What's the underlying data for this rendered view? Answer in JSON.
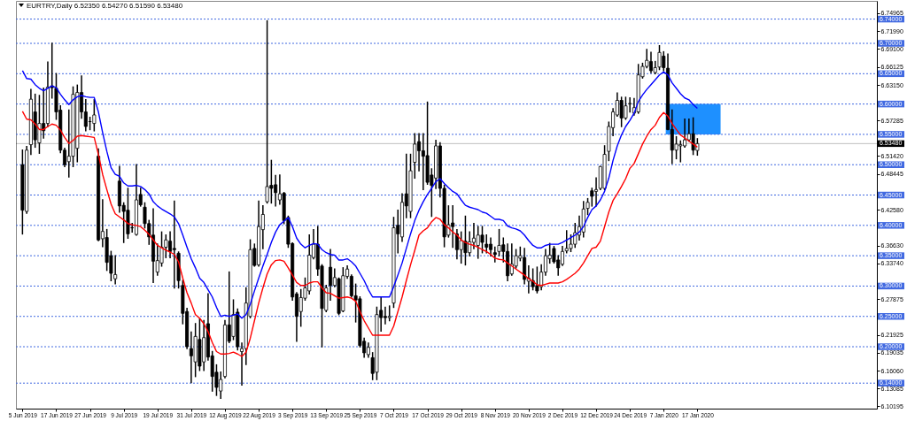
{
  "chart_data": {
    "type": "candlestick",
    "title": "EURTRY,Daily  6.52350 6.54270 6.51590 6.53480",
    "categories": [
      "5 Jun 2019",
      null,
      null,
      null,
      null,
      null,
      null,
      null,
      "17 Jun 2019",
      null,
      null,
      null,
      null,
      null,
      null,
      null,
      "27 Jun 2019",
      null,
      null,
      null,
      null,
      null,
      null,
      null,
      "9 Jul 2019",
      null,
      null,
      null,
      null,
      null,
      null,
      null,
      "19 Jul 2019",
      null,
      null,
      null,
      null,
      null,
      null,
      null,
      "31 Jul 2019",
      null,
      null,
      null,
      null,
      null,
      null,
      null,
      "12 Aug 2019",
      null,
      null,
      null,
      null,
      null,
      null,
      null,
      "22 Aug 2019",
      null,
      null,
      null,
      null,
      null,
      null,
      null,
      "3 Sep 2019",
      null,
      null,
      null,
      null,
      null,
      null,
      null,
      "13 Sep 2019",
      null,
      null,
      null,
      null,
      null,
      null,
      null,
      "25 Sep 2019",
      null,
      null,
      null,
      null,
      null,
      null,
      null,
      "7 Oct 2019",
      null,
      null,
      null,
      null,
      null,
      null,
      null,
      "17 Oct 2019",
      null,
      null,
      null,
      null,
      null,
      null,
      null,
      "29 Oct 2019",
      null,
      null,
      null,
      null,
      null,
      null,
      null,
      "8 Nov 2019",
      null,
      null,
      null,
      null,
      null,
      null,
      null,
      "20 Nov 2019",
      null,
      null,
      null,
      null,
      null,
      null,
      null,
      "2 Dec 2019",
      null,
      null,
      null,
      null,
      null,
      null,
      null,
      "12 Dec 2019",
      null,
      null,
      null,
      null,
      null,
      null,
      null,
      "24 Dec 2019",
      null,
      null,
      null,
      null,
      null,
      null,
      null,
      "7 Jan 2020",
      null,
      null,
      null,
      null,
      null,
      null,
      null,
      "17 Jan 2020"
    ],
    "ohlc": [
      [
        6.5,
        6.524,
        6.386,
        6.425
      ],
      [
        6.423,
        6.53,
        6.42,
        6.524
      ],
      [
        6.533,
        6.624,
        6.517,
        6.608
      ],
      [
        6.587,
        6.616,
        6.529,
        6.541
      ],
      [
        6.536,
        6.614,
        6.519,
        6.568
      ],
      [
        6.568,
        6.626,
        6.544,
        6.556
      ],
      [
        6.568,
        6.669,
        6.563,
        6.628
      ],
      [
        6.63,
        6.7,
        6.61,
        6.627
      ],
      [
        6.626,
        6.65,
        6.575,
        6.587
      ],
      [
        6.59,
        6.597,
        6.52,
        6.524
      ],
      [
        6.524,
        6.527,
        6.497,
        6.5
      ],
      [
        6.505,
        6.59,
        6.48,
        6.514
      ],
      [
        6.514,
        6.628,
        6.497,
        6.616
      ],
      [
        6.527,
        6.631,
        6.505,
        6.619
      ],
      [
        6.619,
        6.646,
        6.577,
        6.587
      ],
      [
        6.587,
        6.607,
        6.556,
        6.563
      ],
      [
        6.571,
        6.578,
        6.558,
        6.571
      ],
      [
        6.568,
        6.607,
        6.556,
        6.582
      ],
      [
        6.514,
        6.526,
        6.375,
        6.376
      ],
      [
        6.378,
        6.442,
        6.365,
        6.39
      ],
      [
        6.38,
        6.393,
        6.326,
        6.339
      ],
      [
        6.35,
        6.357,
        6.309,
        6.321
      ],
      [
        6.312,
        6.35,
        6.304,
        6.319
      ],
      [
        6.473,
        6.497,
        6.422,
        6.432
      ],
      [
        6.433,
        6.437,
        6.372,
        6.423
      ],
      [
        6.425,
        6.461,
        6.379,
        6.386
      ],
      [
        6.396,
        6.403,
        6.389,
        6.396
      ],
      [
        6.385,
        6.5,
        6.384,
        6.442
      ],
      [
        6.451,
        6.461,
        6.432,
        6.434
      ],
      [
        6.43,
        6.437,
        6.396,
        6.403
      ],
      [
        6.403,
        6.408,
        6.369,
        6.381
      ],
      [
        6.384,
        6.427,
        6.306,
        6.341
      ],
      [
        6.323,
        6.369,
        6.318,
        6.342
      ],
      [
        6.338,
        6.389,
        6.333,
        6.364
      ],
      [
        6.364,
        6.384,
        6.347,
        6.376
      ],
      [
        6.374,
        6.389,
        6.347,
        6.357
      ],
      [
        6.362,
        6.44,
        6.297,
        6.36
      ],
      [
        6.354,
        6.356,
        6.297,
        6.309
      ],
      [
        6.301,
        6.309,
        6.238,
        6.255
      ],
      [
        6.258,
        6.263,
        6.197,
        6.2
      ],
      [
        6.197,
        6.224,
        6.141,
        6.185
      ],
      [
        6.175,
        6.238,
        6.151,
        6.217
      ],
      [
        6.212,
        6.246,
        6.161,
        6.168
      ],
      [
        6.175,
        6.243,
        6.161,
        6.215
      ],
      [
        6.238,
        6.287,
        6.178,
        6.183
      ],
      [
        6.185,
        6.192,
        6.127,
        6.151
      ],
      [
        6.158,
        6.17,
        6.12,
        6.133
      ],
      [
        6.127,
        6.158,
        6.115,
        6.146
      ],
      [
        6.151,
        6.243,
        6.149,
        6.236
      ],
      [
        6.236,
        6.323,
        6.207,
        6.209
      ],
      [
        6.217,
        6.277,
        6.212,
        6.253
      ],
      [
        6.257,
        6.262,
        6.195,
        6.2
      ],
      [
        6.192,
        6.206,
        6.137,
        6.197
      ],
      [
        6.197,
        6.297,
        6.171,
        6.272
      ],
      [
        6.25,
        6.376,
        6.248,
        6.36
      ],
      [
        6.362,
        6.369,
        6.333,
        6.334
      ],
      [
        6.335,
        6.44,
        6.333,
        6.398
      ],
      [
        6.393,
        6.432,
        6.362,
        6.418
      ],
      [
        6.439,
        6.737,
        6.437,
        6.464
      ],
      [
        6.466,
        6.507,
        6.437,
        6.461
      ],
      [
        6.467,
        6.482,
        6.432,
        6.454
      ],
      [
        6.442,
        6.483,
        6.435,
        6.452
      ],
      [
        6.453,
        6.454,
        6.403,
        6.408
      ],
      [
        6.413,
        6.415,
        6.364,
        6.369
      ],
      [
        6.37,
        6.371,
        6.277,
        6.282
      ],
      [
        6.287,
        6.289,
        6.209,
        6.25
      ],
      [
        6.258,
        6.294,
        6.234,
        6.281
      ],
      [
        6.28,
        6.313,
        6.277,
        6.297
      ],
      [
        6.292,
        6.384,
        6.287,
        6.351
      ],
      [
        6.347,
        6.393,
        6.345,
        6.369
      ],
      [
        6.369,
        6.398,
        6.318,
        6.328
      ],
      [
        6.333,
        6.335,
        6.2,
        6.263
      ],
      [
        6.26,
        6.301,
        6.258,
        6.297
      ],
      [
        6.331,
        6.36,
        6.277,
        6.301
      ],
      [
        6.301,
        6.328,
        6.299,
        6.314
      ],
      [
        6.312,
        6.313,
        6.253,
        6.255
      ],
      [
        6.259,
        6.33,
        6.258,
        6.317
      ],
      [
        6.316,
        6.333,
        6.313,
        6.328
      ],
      [
        6.316,
        6.318,
        6.282,
        6.284
      ],
      [
        6.284,
        6.303,
        6.241,
        6.277
      ],
      [
        6.279,
        6.282,
        6.2,
        6.202
      ],
      [
        6.209,
        6.214,
        6.183,
        6.19
      ],
      [
        6.187,
        6.206,
        6.183,
        6.199
      ],
      [
        6.182,
        6.19,
        6.146,
        6.156
      ],
      [
        6.158,
        6.265,
        6.146,
        6.253
      ],
      [
        6.26,
        6.282,
        6.226,
        6.248
      ],
      [
        6.25,
        6.265,
        6.238,
        6.248
      ],
      [
        6.248,
        6.267,
        6.243,
        6.25
      ],
      [
        6.272,
        6.413,
        6.265,
        6.396
      ],
      [
        6.4,
        6.425,
        6.355,
        6.386
      ],
      [
        6.381,
        6.452,
        6.374,
        6.438
      ],
      [
        6.452,
        6.517,
        6.413,
        6.432
      ],
      [
        6.423,
        6.517,
        6.413,
        6.49
      ],
      [
        6.504,
        6.551,
        6.478,
        6.534
      ],
      [
        6.538,
        6.551,
        6.49,
        6.523
      ],
      [
        6.523,
        6.551,
        6.459,
        6.514
      ],
      [
        6.515,
        6.603,
        6.468,
        6.471
      ],
      [
        6.483,
        6.493,
        6.415,
        6.466
      ],
      [
        6.478,
        6.54,
        6.461,
        6.531
      ],
      [
        6.531,
        6.536,
        6.447,
        6.461
      ],
      [
        6.461,
        6.466,
        6.365,
        6.381
      ],
      [
        6.384,
        6.432,
        6.381,
        6.401
      ],
      [
        6.404,
        6.432,
        6.364,
        6.398
      ],
      [
        6.386,
        6.393,
        6.345,
        6.36
      ],
      [
        6.36,
        6.389,
        6.338,
        6.375
      ],
      [
        6.374,
        6.415,
        6.335,
        6.355
      ],
      [
        6.355,
        6.389,
        6.35,
        6.373
      ],
      [
        6.372,
        6.403,
        6.362,
        6.379
      ],
      [
        6.367,
        6.398,
        6.346,
        6.384
      ],
      [
        6.384,
        6.398,
        6.355,
        6.372
      ],
      [
        6.369,
        6.384,
        6.355,
        6.364
      ],
      [
        6.369,
        6.379,
        6.35,
        6.36
      ],
      [
        6.355,
        6.364,
        6.34,
        6.352
      ],
      [
        6.357,
        6.393,
        6.35,
        6.367
      ],
      [
        6.368,
        6.379,
        6.34,
        6.357
      ],
      [
        6.357,
        6.369,
        6.309,
        6.317
      ],
      [
        6.32,
        6.369,
        6.318,
        6.336
      ],
      [
        6.333,
        6.36,
        6.33,
        6.35
      ],
      [
        6.346,
        6.364,
        6.342,
        6.35
      ],
      [
        6.347,
        6.362,
        6.304,
        6.311
      ],
      [
        6.308,
        6.333,
        6.289,
        6.313
      ],
      [
        6.309,
        6.328,
        6.294,
        6.299
      ],
      [
        6.301,
        6.331,
        6.289,
        6.292
      ],
      [
        6.299,
        6.335,
        6.294,
        6.323
      ],
      [
        6.323,
        6.36,
        6.318,
        6.35
      ],
      [
        6.345,
        6.37,
        6.338,
        6.351
      ],
      [
        6.362,
        6.365,
        6.338,
        6.34
      ],
      [
        6.343,
        6.35,
        6.318,
        6.33
      ],
      [
        6.336,
        6.365,
        6.334,
        6.357
      ],
      [
        6.358,
        6.391,
        6.355,
        6.362
      ],
      [
        6.362,
        6.384,
        6.357,
        6.369
      ],
      [
        6.369,
        6.403,
        6.364,
        6.388
      ],
      [
        6.384,
        6.415,
        6.376,
        6.398
      ],
      [
        6.389,
        6.439,
        6.381,
        6.427
      ],
      [
        6.428,
        6.444,
        6.418,
        6.438
      ],
      [
        6.457,
        6.461,
        6.432,
        6.448
      ],
      [
        6.456,
        6.478,
        6.432,
        6.459
      ],
      [
        6.461,
        6.497,
        6.459,
        6.497
      ],
      [
        6.461,
        6.531,
        6.459,
        6.517
      ],
      [
        6.522,
        6.57,
        6.507,
        6.563
      ],
      [
        6.561,
        6.592,
        6.548,
        6.587
      ],
      [
        6.582,
        6.618,
        6.58,
        6.606
      ],
      [
        6.606,
        6.611,
        6.563,
        6.577
      ],
      [
        6.577,
        6.611,
        6.575,
        6.597
      ],
      [
        6.6,
        6.61,
        6.587,
        6.601
      ],
      [
        6.585,
        6.609,
        6.582,
        6.594
      ],
      [
        6.587,
        6.665,
        6.585,
        6.648
      ],
      [
        6.645,
        6.667,
        6.643,
        6.662
      ],
      [
        6.662,
        6.69,
        6.66,
        6.672
      ],
      [
        6.67,
        6.685,
        6.652,
        6.655
      ],
      [
        6.652,
        6.67,
        6.65,
        6.66
      ],
      [
        6.661,
        6.696,
        6.657,
        6.685
      ],
      [
        6.679,
        6.686,
        6.655,
        6.66
      ],
      [
        6.659,
        6.682,
        6.558,
        6.558
      ],
      [
        6.558,
        6.59,
        6.502,
        6.524
      ],
      [
        6.524,
        6.546,
        6.51,
        6.534
      ],
      [
        6.531,
        6.539,
        6.505,
        6.533
      ],
      [
        6.531,
        6.575,
        6.529,
        6.541
      ],
      [
        6.541,
        6.575,
        6.539,
        6.551
      ],
      [
        6.551,
        6.577,
        6.517,
        6.524
      ],
      [
        6.5235,
        6.5427,
        6.5159,
        6.5348
      ]
    ],
    "series": [
      {
        "type": "line",
        "color": "#ff0000",
        "values": [
          6.588,
          6.575,
          6.574,
          6.567,
          6.558,
          6.558,
          6.563,
          6.567,
          6.565,
          6.557,
          6.545,
          6.535,
          6.54,
          6.547,
          6.548,
          6.547,
          6.546,
          6.545,
          6.517,
          6.484,
          6.459,
          6.435,
          6.419,
          6.414,
          6.409,
          6.403,
          6.401,
          6.4,
          6.398,
          6.392,
          6.385,
          6.376,
          6.367,
          6.363,
          6.359,
          6.356,
          6.352,
          6.34,
          6.313,
          6.289,
          6.272,
          6.253,
          6.247,
          6.238,
          6.225,
          6.207,
          6.192,
          6.188,
          6.188,
          6.189,
          6.191,
          6.188,
          6.184,
          6.191,
          6.214,
          6.243,
          6.272,
          6.297,
          6.32,
          6.335,
          6.342,
          6.343,
          6.341,
          6.33,
          6.318,
          6.306,
          6.301,
          6.301,
          6.305,
          6.307,
          6.307,
          6.297,
          6.289,
          6.288,
          6.284,
          6.28,
          6.281,
          6.282,
          6.28,
          6.275,
          6.258,
          6.243,
          6.231,
          6.219,
          6.219,
          6.219,
          6.219,
          6.219,
          6.234,
          6.258,
          6.282,
          6.309,
          6.335,
          6.359,
          6.384,
          6.391,
          6.396,
          6.406,
          6.413,
          6.41,
          6.401,
          6.396,
          6.389,
          6.384,
          6.376,
          6.372,
          6.369,
          6.367,
          6.364,
          6.36,
          6.357,
          6.352,
          6.346,
          6.344,
          6.343,
          6.338,
          6.333,
          6.328,
          6.323,
          6.318,
          6.312,
          6.308,
          6.302,
          6.301,
          6.303,
          6.305,
          6.305,
          6.305,
          6.307,
          6.311,
          6.316,
          6.321,
          6.328,
          6.338,
          6.35,
          6.362,
          6.364,
          6.374,
          6.398,
          6.422,
          6.441,
          6.452,
          6.464,
          6.477,
          6.494,
          6.502,
          6.518,
          6.534,
          6.547,
          6.558,
          6.565,
          6.578,
          6.586,
          6.58,
          6.568,
          6.558,
          6.549,
          6.544,
          6.539,
          6.534,
          6.529
        ]
      },
      {
        "type": "line",
        "color": "#0000ff",
        "values": [
          6.655,
          6.642,
          6.641,
          6.632,
          6.626,
          6.622,
          6.626,
          6.63,
          6.627,
          6.616,
          6.607,
          6.599,
          6.607,
          6.612,
          6.614,
          6.612,
          6.611,
          6.611,
          6.587,
          6.553,
          6.522,
          6.495,
          6.484,
          6.481,
          6.47,
          6.465,
          6.465,
          6.466,
          6.464,
          6.459,
          6.452,
          6.439,
          6.432,
          6.427,
          6.423,
          6.419,
          6.414,
          6.403,
          6.384,
          6.364,
          6.345,
          6.33,
          6.313,
          6.306,
          6.294,
          6.282,
          6.265,
          6.25,
          6.252,
          6.25,
          6.252,
          6.254,
          6.247,
          6.253,
          6.27,
          6.292,
          6.313,
          6.333,
          6.352,
          6.372,
          6.389,
          6.401,
          6.407,
          6.413,
          6.398,
          6.379,
          6.369,
          6.363,
          6.367,
          6.37,
          6.369,
          6.36,
          6.355,
          6.352,
          6.351,
          6.343,
          6.343,
          6.345,
          6.34,
          6.333,
          6.321,
          6.309,
          6.294,
          6.282,
          6.282,
          6.282,
          6.282,
          6.282,
          6.299,
          6.318,
          6.338,
          6.362,
          6.386,
          6.408,
          6.425,
          6.439,
          6.451,
          6.461,
          6.472,
          6.477,
          6.469,
          6.462,
          6.456,
          6.452,
          6.442,
          6.433,
          6.43,
          6.428,
          6.426,
          6.422,
          6.42,
          6.415,
          6.41,
          6.41,
          6.408,
          6.399,
          6.396,
          6.394,
          6.391,
          6.384,
          6.375,
          6.367,
          6.363,
          6.363,
          6.367,
          6.369,
          6.369,
          6.369,
          6.372,
          6.376,
          6.38,
          6.384,
          6.389,
          6.398,
          6.413,
          6.426,
          6.432,
          6.442,
          6.456,
          6.478,
          6.507,
          6.531,
          6.549,
          6.563,
          6.573,
          6.585,
          6.604,
          6.615,
          6.624,
          6.632,
          6.64,
          6.648,
          6.653,
          6.648,
          6.635,
          6.626,
          6.617,
          6.61,
          6.607,
          6.599,
          6.593
        ]
      }
    ],
    "ylim": [
      6.098,
      6.77
    ],
    "yticks": [
      {
        "value": 6.74965,
        "label": "6.74965"
      },
      {
        "value": 6.7199,
        "label": "6.71990"
      },
      {
        "value": 6.691,
        "label": "6.69100"
      },
      {
        "value": 6.66125,
        "label": "6.66125"
      },
      {
        "value": 6.6315,
        "label": "6.63150"
      },
      {
        "value": 6.57285,
        "label": "6.57285"
      },
      {
        "value": 6.5142,
        "label": "6.51420"
      },
      {
        "value": 6.48445,
        "label": "6.48445"
      },
      {
        "value": 6.4258,
        "label": "6.42580"
      },
      {
        "value": 6.3663,
        "label": "6.36630"
      },
      {
        "value": 6.3374,
        "label": "6.33740"
      },
      {
        "value": 6.27875,
        "label": "6.27875"
      },
      {
        "value": 6.21925,
        "label": "6.21925"
      },
      {
        "value": 6.19035,
        "label": "6.19035"
      },
      {
        "value": 6.1606,
        "label": "6.16060"
      },
      {
        "value": 6.13085,
        "label": "6.13085"
      },
      {
        "value": 6.10195,
        "label": "6.10195"
      }
    ],
    "ref_lines": [
      {
        "axis": "y",
        "value": 6.74,
        "label": "6.74000",
        "color": "#4169e1",
        "line_style": "dotted"
      },
      {
        "axis": "y",
        "value": 6.7,
        "label": "6.70000",
        "color": "#4169e1",
        "line_style": "dotted"
      },
      {
        "axis": "y",
        "value": 6.65,
        "label": "6.65000",
        "color": "#4169e1",
        "line_style": "dotted"
      },
      {
        "axis": "y",
        "value": 6.6,
        "label": "6.60000",
        "color": "#4169e1",
        "line_style": "dotted"
      },
      {
        "axis": "y",
        "value": 6.55,
        "label": "6.55000",
        "color": "#4169e1",
        "line_style": "dotted"
      },
      {
        "axis": "y",
        "value": 6.5,
        "label": "6.50000",
        "color": "#4169e1",
        "line_style": "dotted"
      },
      {
        "axis": "y",
        "value": 6.45,
        "label": "6.45000",
        "color": "#4169e1",
        "line_style": "dotted"
      },
      {
        "axis": "y",
        "value": 6.4,
        "label": "6.40000",
        "color": "#4169e1",
        "line_style": "dotted"
      },
      {
        "axis": "y",
        "value": 6.35,
        "label": "6.35000",
        "color": "#4169e1",
        "line_style": "dotted"
      },
      {
        "axis": "y",
        "value": 6.3,
        "label": "6.30000",
        "color": "#4169e1",
        "line_style": "dotted"
      },
      {
        "axis": "y",
        "value": 6.25,
        "label": "6.25000",
        "color": "#4169e1",
        "line_style": "dotted"
      },
      {
        "axis": "y",
        "value": 6.2,
        "label": "6.20000",
        "color": "#4169e1",
        "line_style": "dotted"
      },
      {
        "axis": "y",
        "value": 6.14,
        "label": "6.14000",
        "color": "#4169e1",
        "line_style": "dotted"
      },
      {
        "axis": "y",
        "value": 6.5348,
        "label": "6.53480",
        "color": "#000000",
        "line_style": "solid"
      }
    ],
    "bands": [
      {
        "axis": "y",
        "from": 6.55,
        "to": 6.6,
        "color": "#1e90ff"
      }
    ]
  }
}
